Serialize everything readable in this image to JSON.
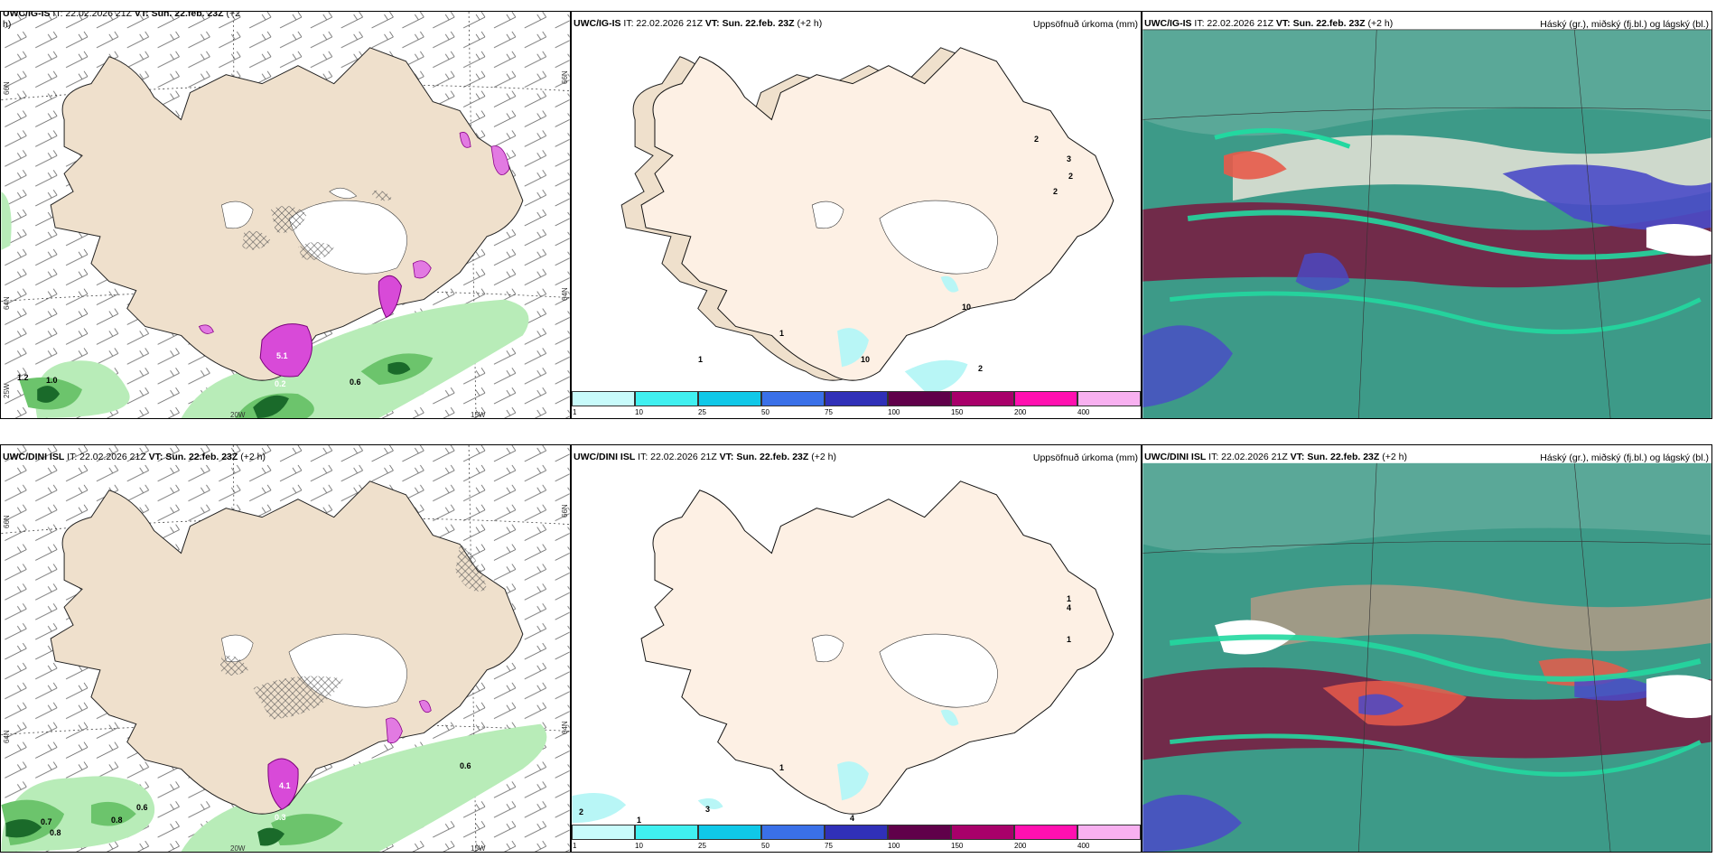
{
  "panels": [
    {
      "id": "p1",
      "model": "UWC/IG-IS",
      "it": "IT: 22.02.2026 21Z",
      "vt_label": "VT:",
      "vt": "Sun. 22.feb. 23Z",
      "lead": "(+2",
      "lead2": "h)",
      "right": ""
    },
    {
      "id": "p2",
      "model": "UWC/IG-IS",
      "it": "IT: 22.02.2026 21Z",
      "vt_label": "VT:",
      "vt": "Sun. 22.feb. 23Z",
      "lead": "(+2 h)",
      "right": "Uppsöfnuð úrkoma (mm)"
    },
    {
      "id": "p3",
      "model": "UWC/IG-IS",
      "it": "IT: 22.02.2026 21Z",
      "vt_label": "VT:",
      "vt": "Sun. 22.feb. 23Z",
      "lead": "(+2 h)",
      "right": "Háský (gr.), miðský (fj.bl.) og lágský (bl.)"
    },
    {
      "id": "p4",
      "model": "UWC/DINI ISL",
      "it": "IT: 22.02.2026 21Z",
      "vt_label": "VT:",
      "vt": "Sun. 22.feb. 23Z",
      "lead": "(+2 h)",
      "right": ""
    },
    {
      "id": "p5",
      "model": "UWC/DINI ISL",
      "it": "IT: 22.02.2026 21Z",
      "vt_label": "VT:",
      "vt": "Sun. 22.feb. 23Z",
      "lead": "(+2 h)",
      "right": "Uppsöfnuð úrkoma (mm)"
    },
    {
      "id": "p6",
      "model": "UWC/DINI ISL",
      "it": "IT: 22.02.2026 21Z",
      "vt_label": "VT:",
      "vt": "Sun. 22.feb. 23Z",
      "lead": "(+2 h)",
      "right": "Háský (gr.), miðský (fj.bl.) og lágský (bl.)"
    }
  ],
  "axis": {
    "lat66": "66N",
    "lat64": "64N",
    "lon20": "20W",
    "lon15": "15W",
    "lon25": "25W"
  },
  "top_wind_labels": [
    "1.2",
    "1.0",
    "0.2",
    "0.6",
    "5.1"
  ],
  "bottom_wind_labels": [
    "0.7",
    "0.8",
    "0.8",
    "0.6",
    "0.3",
    "0.6",
    "4.1"
  ],
  "top_precip_labels": [
    "2",
    "3",
    "2",
    "2",
    "1",
    "1",
    "10",
    "2",
    "10"
  ],
  "bottom_precip_labels": [
    "4",
    "1",
    "1",
    "2",
    "1",
    "1",
    "3",
    "4"
  ],
  "colorbar": {
    "ticks": [
      "1",
      "10",
      "25",
      "50",
      "75",
      "100",
      "150",
      "200",
      "400"
    ],
    "colors": [
      "#c8fbfb",
      "#40f0f0",
      "#10c8e8",
      "#3a70e8",
      "#3030b8",
      "#60004a",
      "#a8006a",
      "#ff10b0",
      "#f8b0f0"
    ]
  },
  "colors": {
    "land": "#efe0cc",
    "land_precip_panel": "#fdf0e4",
    "green_light": "#b8ecb8",
    "green_mid": "#6cc46c",
    "green_dark": "#1a6a2a",
    "magenta": "#d84ad8",
    "cloud_teal": "#3d9a88",
    "cloud_bright": "#22d8a0",
    "cloud_maroon": "#7a1840",
    "cloud_blue": "#4a4ac8"
  }
}
